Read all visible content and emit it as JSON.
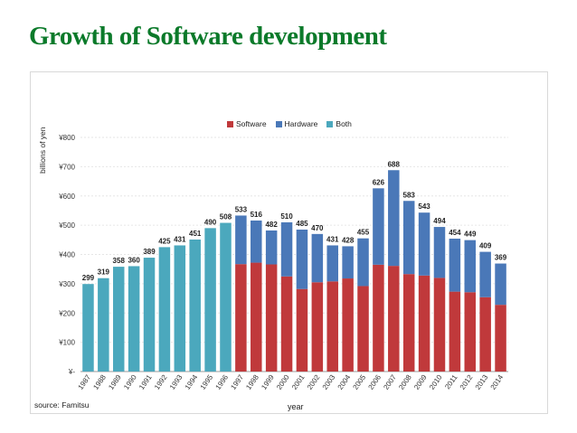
{
  "slide": {
    "title": "Growth of Software development"
  },
  "chart_data": {
    "type": "bar",
    "stacked": true,
    "title": "",
    "xlabel": "year",
    "ylabel": "billions of yen",
    "source": "source: Famitsu",
    "ylim": [
      0,
      800
    ],
    "yticks": [
      "¥-",
      "¥100",
      "¥200",
      "¥300",
      "¥400",
      "¥500",
      "¥600",
      "¥700",
      "¥800"
    ],
    "legend_position": "top-center",
    "categories": [
      "1987",
      "1988",
      "1989",
      "1990",
      "1991",
      "1992",
      "1993",
      "1994",
      "1995",
      "1996",
      "1997",
      "1998",
      "1999",
      "2000",
      "2001",
      "2002",
      "2003",
      "2004",
      "2005",
      "2006",
      "2007",
      "2008",
      "2009",
      "2010",
      "2011",
      "2012",
      "2013",
      "2014"
    ],
    "series": [
      {
        "name": "Software",
        "color": "#c0393b",
        "values": [
          null,
          null,
          null,
          null,
          null,
          null,
          null,
          null,
          null,
          null,
          367,
          372,
          366,
          325,
          282,
          305,
          308,
          318,
          292,
          365,
          361,
          333,
          328,
          320,
          273,
          271,
          254,
          228
        ]
      },
      {
        "name": "Hardware",
        "color": "#4a78b8",
        "values": [
          null,
          null,
          null,
          null,
          null,
          null,
          null,
          null,
          null,
          null,
          166,
          144,
          116,
          185,
          203,
          165,
          123,
          110,
          163,
          261,
          327,
          250,
          215,
          174,
          181,
          178,
          155,
          141
        ]
      },
      {
        "name": "Both",
        "color": "#4ba8bd",
        "values": [
          299,
          319,
          358,
          360,
          389,
          425,
          431,
          451,
          490,
          508,
          null,
          null,
          null,
          null,
          null,
          null,
          null,
          null,
          null,
          null,
          null,
          null,
          null,
          null,
          null,
          null,
          null,
          null
        ]
      }
    ],
    "totals": [
      299,
      319,
      358,
      360,
      389,
      425,
      431,
      451,
      490,
      508,
      533,
      516,
      482,
      510,
      485,
      470,
      431,
      428,
      455,
      626,
      688,
      583,
      543,
      494,
      454,
      449,
      409,
      369
    ],
    "grid": true
  }
}
